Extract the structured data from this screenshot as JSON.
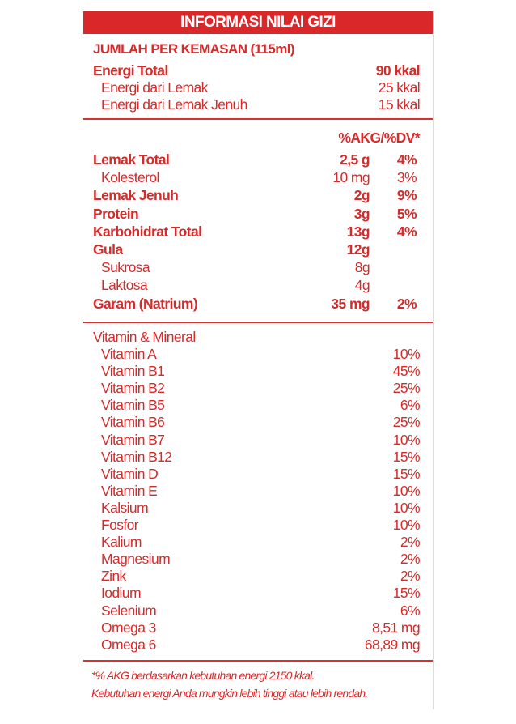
{
  "title": "INFORMASI NILAI GIZI",
  "serving": "JUMLAH PER KEMASAN (115ml)",
  "energy": [
    {
      "label": "Energi Total",
      "value": "90 kkal",
      "bold": true
    },
    {
      "label": "Energi dari Lemak",
      "value": "25 kkal",
      "bold": false
    },
    {
      "label": "Energi dari Lemak Jenuh",
      "value": "15 kkal",
      "bold": false
    }
  ],
  "dv_header": "%AKG/%DV*",
  "nutrients": [
    {
      "label": "Lemak Total",
      "amount": "2,5 g",
      "pct": "4%",
      "bold": true,
      "indent": false
    },
    {
      "label": "Kolesterol",
      "amount": "10 mg",
      "pct": "3%",
      "bold": false,
      "indent": true
    },
    {
      "label": "Lemak Jenuh",
      "amount": "2g",
      "pct": "9%",
      "bold": true,
      "indent": false
    },
    {
      "label": "Protein",
      "amount": "3g",
      "pct": "5%",
      "bold": true,
      "indent": false
    },
    {
      "label": "Karbohidrat Total",
      "amount": "13g",
      "pct": "4%",
      "bold": true,
      "indent": false
    },
    {
      "label": "Gula",
      "amount": "12g",
      "pct": "",
      "bold": true,
      "indent": false
    },
    {
      "label": "Sukrosa",
      "amount": "8g",
      "pct": "",
      "bold": false,
      "indent": true
    },
    {
      "label": "Laktosa",
      "amount": "4g",
      "pct": "",
      "bold": false,
      "indent": true
    },
    {
      "label": "Garam (Natrium)",
      "amount": "35 mg",
      "pct": "2%",
      "bold": true,
      "indent": false
    }
  ],
  "vitamin_header": "Vitamin & Mineral",
  "vitamins": [
    {
      "label": "Vitamin A",
      "value": "10%"
    },
    {
      "label": "Vitamin B1",
      "value": "45%"
    },
    {
      "label": "Vitamin B2",
      "value": "25%"
    },
    {
      "label": "Vitamin B5",
      "value": "6%"
    },
    {
      "label": "Vitamin B6",
      "value": "25%"
    },
    {
      "label": "Vitamin B7",
      "value": "10%"
    },
    {
      "label": "Vitamin B12",
      "value": "15%"
    },
    {
      "label": "Vitamin D",
      "value": "15%"
    },
    {
      "label": "Vitamin E",
      "value": "10%"
    },
    {
      "label": "Kalsium",
      "value": "10%"
    },
    {
      "label": "Fosfor",
      "value": "10%"
    },
    {
      "label": "Kalium",
      "value": "2%"
    },
    {
      "label": "Magnesium",
      "value": "2%"
    },
    {
      "label": "Zink",
      "value": "2%"
    },
    {
      "label": "Iodium",
      "value": "15%"
    },
    {
      "label": "Selenium",
      "value": "6%"
    },
    {
      "label": "Omega 3",
      "value": "8,51 mg"
    },
    {
      "label": "Omega 6",
      "value": "68,89 mg"
    }
  ],
  "footnote": [
    "*% AKG berdasarkan kebutuhan energi 2150 kkal.",
    "Kebutuhan energi Anda mungkin lebih tinggi atau lebih rendah."
  ],
  "colors": {
    "brand_red": "#d9272a",
    "text_red": "#d42b2b"
  }
}
